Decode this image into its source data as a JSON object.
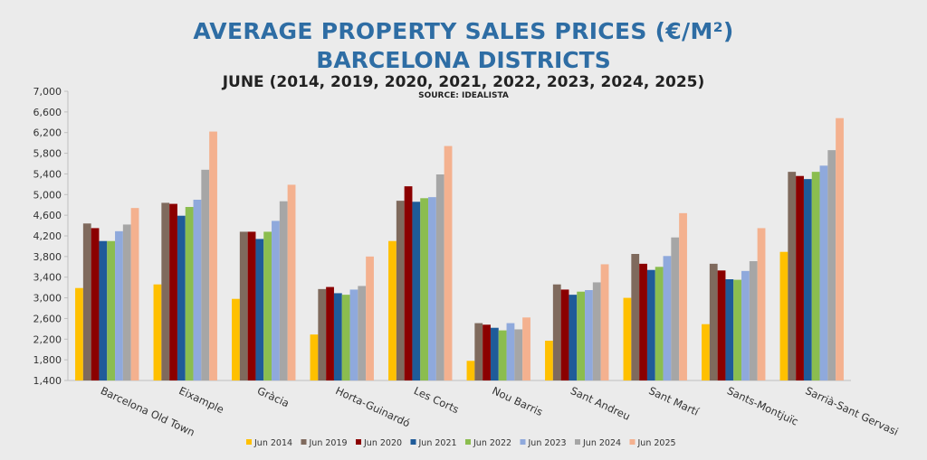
{
  "title_line1": "AVERAGE PROPERTY SALES PRICES (€/M²)",
  "title_line2": "BARCELONA DISTRICTS",
  "subtitle": "JUNE (2014, 2019, 2020, 2021, 2022, 2023, 2024, 2025)",
  "source": "SOURCE: IDEALISTA",
  "colors": {
    "background": "#ebebeb",
    "title": "#2e6da4"
  },
  "chart_data": {
    "type": "bar",
    "categories": [
      "Barcelona Old Town",
      "Eixample",
      "Gràcia",
      "Horta-Guinardó",
      "Les Corts",
      "Nou Barris",
      "Sant Andreu",
      "Sant Martí",
      "Sants-Montjuïc",
      "Sarrià-Sant Gervasi"
    ],
    "ylim": [
      1400,
      7000
    ],
    "yticks": [
      "1,400",
      "1,800",
      "2,200",
      "2,600",
      "3,000",
      "3,400",
      "3,800",
      "4,200",
      "4,600",
      "5,000",
      "5,400",
      "5,800",
      "6,200",
      "6,600",
      "7,000"
    ],
    "ytick_values": [
      1400,
      1800,
      2200,
      2600,
      3000,
      3400,
      3800,
      4200,
      4600,
      5000,
      5400,
      5800,
      6200,
      6600,
      7000
    ],
    "legend_position": "bottom",
    "grid": false,
    "series": [
      {
        "name": "Jun 2014",
        "color": "#ffc000",
        "values": [
          3190,
          3260,
          2980,
          2290,
          4100,
          1780,
          2170,
          3000,
          2490,
          3890
        ]
      },
      {
        "name": "Jun 2019",
        "color": "#7f6a5d",
        "values": [
          4440,
          4840,
          4280,
          3170,
          4880,
          2510,
          3260,
          3850,
          3660,
          5440
        ]
      },
      {
        "name": "Jun 2020",
        "color": "#8b0000",
        "values": [
          4350,
          4820,
          4280,
          3210,
          5160,
          2480,
          3160,
          3660,
          3530,
          5360
        ]
      },
      {
        "name": "Jun 2021",
        "color": "#1f5b99",
        "values": [
          4100,
          4590,
          4140,
          3090,
          4860,
          2420,
          3060,
          3540,
          3360,
          5300
        ]
      },
      {
        "name": "Jun 2022",
        "color": "#8bbd4f",
        "values": [
          4100,
          4760,
          4280,
          3060,
          4930,
          2370,
          3120,
          3600,
          3350,
          5440
        ]
      },
      {
        "name": "Jun 2023",
        "color": "#8fa9dc",
        "values": [
          4290,
          4900,
          4490,
          3160,
          4950,
          2510,
          3150,
          3810,
          3520,
          5560
        ]
      },
      {
        "name": "Jun 2024",
        "color": "#a6a6a6",
        "values": [
          4420,
          5480,
          4870,
          3230,
          5390,
          2390,
          3300,
          4170,
          3710,
          5860
        ]
      },
      {
        "name": "Jun 2025",
        "color": "#f4b18f",
        "values": [
          4740,
          6220,
          5190,
          3800,
          5940,
          2620,
          3650,
          4640,
          4350,
          6480
        ]
      }
    ]
  }
}
